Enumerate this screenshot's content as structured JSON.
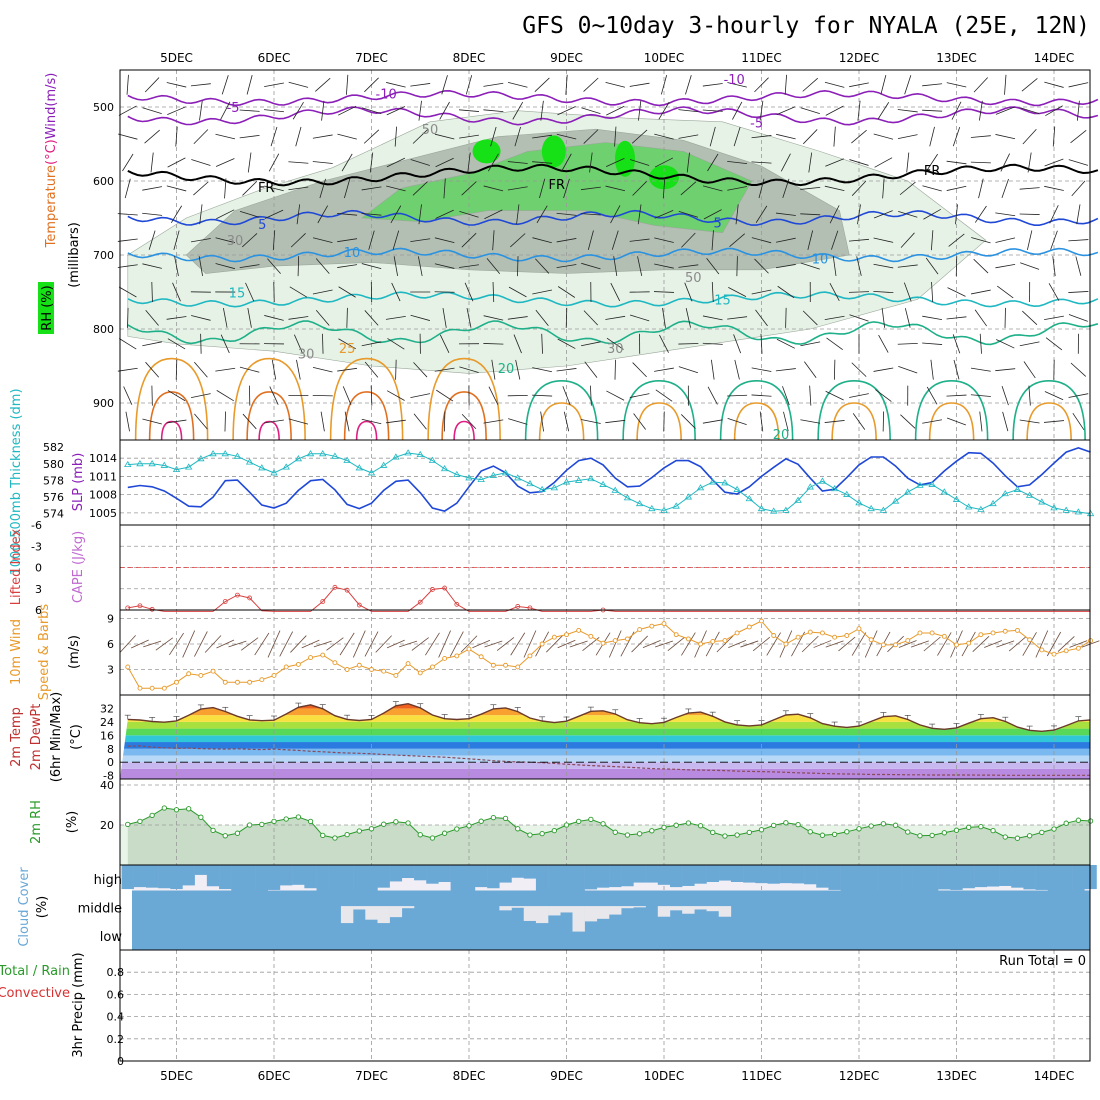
{
  "title": "GFS 0~10day 3-hourly for NYALA (25E, 12N)",
  "colors": {
    "purple": "#8b1fb8",
    "black": "#000000",
    "blue": "#1f48d6",
    "skyblue": "#2a92e0",
    "cyan": "#1fb8c2",
    "teal": "#1fb08a",
    "orange": "#e89a2a",
    "darkorange": "#e07020",
    "magenta": "#e01e82",
    "rh_light": "#e6f2e6",
    "rh_gray": "#b3bfb3",
    "rh_green": "#6ed06e",
    "rh_bright": "#16e016",
    "cloud": "#6aa8d6",
    "cloud_bg": "#f2eef6"
  },
  "chart_data": {
    "type": "meteogram",
    "x_dates": [
      "5DEC",
      "6DEC",
      "7DEC",
      "8DEC",
      "9DEC",
      "10DEC",
      "11DEC",
      "12DEC",
      "13DEC",
      "14DEC"
    ],
    "upper_air": {
      "ylabel_parts": [
        "Temperature",
        "(°C)",
        "Wind",
        "(m/s)"
      ],
      "ylabel2": "(millibars)",
      "rh_label": "RH (%)",
      "yticks": [
        "500",
        "600",
        "700",
        "800",
        "900"
      ],
      "yrange_mb": [
        950,
        450
      ],
      "contour_labels": [
        {
          "text": "-10",
          "color": "purple",
          "d": 2.15,
          "mb": 482
        },
        {
          "text": "-10",
          "color": "purple",
          "d": 5.72,
          "mb": 462
        },
        {
          "text": "-5",
          "color": "purple",
          "d": 0.58,
          "mb": 500
        },
        {
          "text": "-5",
          "color": "purple",
          "d": 5.95,
          "mb": 521
        },
        {
          "text": "FR",
          "color": "black",
          "d": 0.92,
          "mb": 608
        },
        {
          "text": "FR",
          "color": "black",
          "d": 3.9,
          "mb": 604
        },
        {
          "text": "FR",
          "color": "black",
          "d": 7.75,
          "mb": 585
        },
        {
          "text": "5",
          "color": "blue",
          "d": 0.88,
          "mb": 658
        },
        {
          "text": "5",
          "color": "blue",
          "d": 5.55,
          "mb": 656
        },
        {
          "text": "10",
          "color": "skyblue",
          "d": 1.8,
          "mb": 696
        },
        {
          "text": "10",
          "color": "skyblue",
          "d": 6.6,
          "mb": 705
        },
        {
          "text": "15",
          "color": "cyan",
          "d": 0.62,
          "mb": 751
        },
        {
          "text": "15",
          "color": "cyan",
          "d": 5.6,
          "mb": 760
        },
        {
          "text": "20",
          "color": "teal",
          "d": 3.38,
          "mb": 853
        },
        {
          "text": "20",
          "color": "teal",
          "d": 6.2,
          "mb": 942
        },
        {
          "text": "25",
          "color": "orange",
          "d": 1.75,
          "mb": 826
        },
        {
          "text": "30",
          "color": "rh",
          "d": 0.6,
          "mb": 680
        },
        {
          "text": "30",
          "color": "rh",
          "d": 1.33,
          "mb": 833
        },
        {
          "text": "50",
          "color": "rh",
          "d": 2.6,
          "mb": 530
        },
        {
          "text": "50",
          "color": "rh",
          "d": 5.3,
          "mb": 730
        },
        {
          "text": "30",
          "color": "rh",
          "d": 4.5,
          "mb": 826
        }
      ]
    },
    "thickness_slp": {
      "ylabel_left": "1000-500mb Thickness (dm)",
      "ylabel_right": "SLP (mb)",
      "thickness_ticks": [
        "582",
        "580",
        "578",
        "576",
        "574"
      ],
      "slp_ticks": [
        "1014",
        "1011",
        "1008",
        "1005"
      ],
      "slp_mb": [
        1009.2,
        1009.5,
        1009.3,
        1008.6,
        1007.4,
        1006.1,
        1006.0,
        1007.6,
        1010.3,
        1010.4,
        1008.4,
        1006.3,
        1005.8,
        1006.6,
        1008.7,
        1010.3,
        1010.5,
        1008.8,
        1006.4,
        1005.7,
        1006.6,
        1008.7,
        1010.2,
        1010.4,
        1008.3,
        1005.8,
        1005.3,
        1006.6,
        1009.3,
        1011.9,
        1012.7,
        1011.6,
        1009.4,
        1008.3,
        1008.5,
        1010.0,
        1012.0,
        1013.6,
        1014.0,
        1012.9,
        1010.7,
        1009.3,
        1009.4,
        1010.8,
        1012.4,
        1013.6,
        1013.6,
        1012.6,
        1010.4,
        1008.4,
        1008.1,
        1009.3,
        1011.0,
        1012.5,
        1013.9,
        1013.0,
        1010.7,
        1008.6,
        1008.9,
        1010.8,
        1012.9,
        1014.2,
        1014.2,
        1012.7,
        1010.7,
        1009.6,
        1010.0,
        1011.9,
        1013.5,
        1014.9,
        1014.8,
        1013.2,
        1011.1,
        1009.3,
        1009.6,
        1011.3,
        1013.2,
        1015.0,
        1015.7,
        1015.0
      ],
      "thickness_dm": [
        579.9,
        580.0,
        580.0,
        579.8,
        579.3,
        579.6,
        580.6,
        581.2,
        581.2,
        580.9,
        580.2,
        579.5,
        578.9,
        579.6,
        580.6,
        581.2,
        581.2,
        580.9,
        580.4,
        579.5,
        578.9,
        579.8,
        580.8,
        581.3,
        581.1,
        580.4,
        579.4,
        578.7,
        578.3,
        578.1,
        578.6,
        578.9,
        578.3,
        577.6,
        576.9,
        577.1,
        577.8,
        578.0,
        578.2,
        577.5,
        576.8,
        575.9,
        575.2,
        574.6,
        574.4,
        574.9,
        576.0,
        577.1,
        577.8,
        577.7,
        576.9,
        575.8,
        574.6,
        574.3,
        574.4,
        575.6,
        577.2,
        577.9,
        577.0,
        576.3,
        575.3,
        574.6,
        574.4,
        575.5,
        576.6,
        577.4,
        577.5,
        576.6,
        575.7,
        574.8,
        574.5,
        575.2,
        576.4,
        576.9,
        576.2,
        575.4,
        574.7,
        574.4,
        574.2,
        574.0
      ]
    },
    "cape_li": {
      "ylabel_left": "Lifted Index",
      "ylabel_right": "CAPE (J/kg)",
      "yticks": [
        "-6",
        "-3",
        "0",
        "3",
        "6"
      ],
      "yrange": [
        -6,
        6
      ],
      "li": [
        5.7,
        5.4,
        5.9,
        6.4,
        6.9,
        7.4,
        7.8,
        6.4,
        4.8,
        3.9,
        4.3,
        6.1,
        7.2,
        7.9,
        8.6,
        6.9,
        4.8,
        2.8,
        3.2,
        5.3,
        6.7,
        8.0,
        8.4,
        6.9,
        4.9,
        3.1,
        2.9,
        5.2,
        6.3,
        7.1,
        7.8,
        6.7,
        5.5,
        5.7,
        6.8,
        7.6,
        8.2,
        7.4,
        6.7,
        6.0,
        6.2,
        7.5,
        8.3,
        8.9,
        8.7,
        8.2,
        7.8,
        7.9,
        8.4,
        8.9,
        9.0,
        8.5,
        8.2,
        8.3,
        8.6,
        9.0,
        9.1,
        8.7,
        8.5,
        8.8,
        9.0,
        9.2,
        9.1,
        8.8,
        8.6,
        8.9,
        9.2,
        9.4,
        9.3,
        9.1,
        8.9,
        9.0,
        9.3,
        9.5,
        9.3,
        9.1,
        9.0,
        9.2,
        9.4,
        9.3
      ]
    },
    "wind10m": {
      "ylabel_left": "10m Wind",
      "ylabel_mid": "Speed & Barbs",
      "ylabel_right": "(m/s)",
      "yticks": [
        "9",
        "6",
        "3"
      ],
      "yrange": [
        0,
        10
      ],
      "speed_ms": [
        3.3,
        0.8,
        0.8,
        0.8,
        1.5,
        2.5,
        2.3,
        2.8,
        1.5,
        1.5,
        1.5,
        1.8,
        2.3,
        3.3,
        3.6,
        4.4,
        4.7,
        3.8,
        3.0,
        3.5,
        3.0,
        2.8,
        2.3,
        3.7,
        2.6,
        3.3,
        4.3,
        4.6,
        5.4,
        4.5,
        3.5,
        3.5,
        3.3,
        4.6,
        6.0,
        6.8,
        7.1,
        7.6,
        6.9,
        6.1,
        6.4,
        6.6,
        7.7,
        8.1,
        8.4,
        7.1,
        6.6,
        6.0,
        6.3,
        6.4,
        7.3,
        8.0,
        8.7,
        7.0,
        6.0,
        6.8,
        7.4,
        7.3,
        6.8,
        7.0,
        7.8,
        6.5,
        5.9,
        5.9,
        6.4,
        7.3,
        7.3,
        6.9,
        5.9,
        6.1,
        7.1,
        7.3,
        7.5,
        7.6,
        6.5,
        5.3,
        4.8,
        5.2,
        5.5,
        6.4
      ]
    },
    "temp2m": {
      "ylabel_parts": [
        "2m Temp",
        "2m DewPt",
        "(6hr Min/Max)",
        "(°C)"
      ],
      "yticks": [
        "32",
        "24",
        "16",
        "8",
        "0",
        "-8"
      ],
      "yrange": [
        -10,
        40
      ],
      "temp_c": [
        25.5,
        25.1,
        24.2,
        23.8,
        24.6,
        28.0,
        31.6,
        32.5,
        30.2,
        27.3,
        25.2,
        24.7,
        25.0,
        28.7,
        32.7,
        34.1,
        31.8,
        27.7,
        25.5,
        24.8,
        25.4,
        29.2,
        33.6,
        34.8,
        32.3,
        28.1,
        25.9,
        25.4,
        25.9,
        28.6,
        31.7,
        32.3,
        30.1,
        26.3,
        24.5,
        23.6,
        24.4,
        27.3,
        30.3,
        30.6,
        28.7,
        25.3,
        23.5,
        22.9,
        23.7,
        26.6,
        29.2,
        29.8,
        27.3,
        24.0,
        22.2,
        21.6,
        22.2,
        25.2,
        28.1,
        28.6,
        26.4,
        23.0,
        21.4,
        20.7,
        21.5,
        24.3,
        27.1,
        27.6,
        25.4,
        22.2,
        20.2,
        19.6,
        20.4,
        23.2,
        25.9,
        26.5,
        24.3,
        20.9,
        19.0,
        18.4,
        19.1,
        21.8,
        24.6,
        25.2
      ],
      "dewpoint_c": [
        9.5,
        9.7,
        9.0,
        8.6,
        8.3,
        8.4,
        8.1,
        7.9,
        7.8,
        8.0,
        7.7,
        7.5,
        7.8,
        7.4,
        7.0,
        6.5,
        6.2,
        5.8,
        5.5,
        5.3,
        5.0,
        4.6,
        4.2,
        3.9,
        3.6,
        3.3,
        3.0,
        2.5,
        2.0,
        1.5,
        0.9,
        0.5,
        0.2,
        0.0,
        -0.3,
        -0.7,
        -1.2,
        -1.6,
        -2.0,
        -2.3,
        -2.6,
        -3.0,
        -3.4,
        -3.8,
        -4.0,
        -4.2,
        -4.5,
        -4.7,
        -4.8,
        -5.0,
        -5.3,
        -5.5,
        -5.6,
        -5.8,
        -6.0,
        -6.3,
        -6.5,
        -6.7,
        -6.9,
        -7.0,
        -7.1,
        -7.3,
        -7.3,
        -7.4,
        -7.5,
        -7.5,
        -7.6,
        -7.6,
        -7.6,
        -7.6,
        -7.7,
        -7.7,
        -7.8,
        -7.8,
        -7.8,
        -7.8,
        -7.8,
        -7.8,
        -7.8,
        -7.8
      ]
    },
    "rh2m": {
      "ylabel_left": "2m RH",
      "ylabel_right": "(%)",
      "yticks": [
        "40",
        "20"
      ],
      "yrange": [
        0,
        43
      ],
      "rh_pct": [
        20.3,
        21.8,
        24.8,
        28.5,
        27.6,
        28.1,
        23.9,
        17.3,
        14.6,
        15.9,
        20.0,
        20.3,
        21.8,
        23.0,
        24.0,
        21.8,
        14.8,
        13.5,
        15.2,
        17.0,
        18.1,
        20.4,
        21.6,
        21.0,
        15.1,
        13.5,
        15.9,
        18.0,
        19.6,
        21.9,
        23.7,
        23.3,
        18.1,
        15.0,
        15.7,
        17.2,
        20.0,
        21.8,
        22.8,
        20.6,
        16.4,
        15.0,
        15.6,
        17.1,
        18.8,
        19.9,
        21.0,
        19.6,
        16.3,
        14.5,
        15.0,
        16.3,
        17.6,
        19.8,
        21.1,
        20.2,
        16.6,
        14.9,
        15.3,
        16.6,
        18.1,
        19.5,
        20.6,
        19.9,
        16.5,
        14.6,
        14.8,
        16.1,
        17.4,
        18.8,
        19.2,
        17.2,
        14.0,
        13.4,
        14.6,
        16.3,
        18.0,
        20.9,
        22.4,
        22.0
      ]
    },
    "cloud": {
      "ylabel_left": "Cloud Cover",
      "ylabel_right": "(%)",
      "levels": [
        "high",
        "middle",
        "low"
      ],
      "high_cover_pct": [
        85,
        78,
        80,
        82,
        85,
        72,
        35,
        75,
        85,
        90,
        95,
        96,
        88,
        72,
        70,
        82,
        92,
        95,
        96,
        93,
        90,
        80,
        58,
        46,
        54,
        66,
        60,
        90,
        92,
        78,
        82,
        62,
        45,
        48,
        95,
        96,
        94,
        92,
        86,
        80,
        78,
        75,
        62,
        62,
        70,
        78,
        74,
        66,
        60,
        55,
        60,
        62,
        64,
        66,
        64,
        65,
        68,
        80,
        88,
        92,
        95,
        98,
        96,
        98,
        96,
        94,
        90,
        86,
        88,
        82,
        78,
        76,
        74,
        80,
        86,
        88,
        90,
        92,
        95,
        85
      ],
      "mid_gap_pct": [
        0,
        0,
        0,
        0,
        0,
        0,
        0,
        0,
        0,
        0,
        0,
        0,
        0,
        0,
        0,
        0,
        0,
        0,
        40,
        8,
        32,
        40,
        26,
        5,
        0,
        0,
        0,
        0,
        0,
        0,
        0,
        10,
        4,
        35,
        40,
        22,
        15,
        60,
        36,
        30,
        20,
        5,
        3,
        0,
        25,
        10,
        18,
        8,
        12,
        25,
        0,
        0,
        0,
        0,
        0,
        0,
        0,
        0,
        0,
        0,
        0,
        0,
        0,
        0,
        0,
        0,
        0,
        0,
        0,
        0,
        0,
        0,
        0,
        0,
        0,
        0,
        0,
        0,
        0,
        0
      ]
    },
    "precip": {
      "ylabel_left": "Total / Rain",
      "ylabel_mid": "Convective",
      "ylabel_right": "3hr Precip (mm)",
      "yticks": [
        "0.8",
        "0.6",
        "0.4",
        "0.2",
        "0"
      ],
      "yrange": [
        0,
        1.0
      ],
      "run_total": "Run Total = 0"
    }
  }
}
